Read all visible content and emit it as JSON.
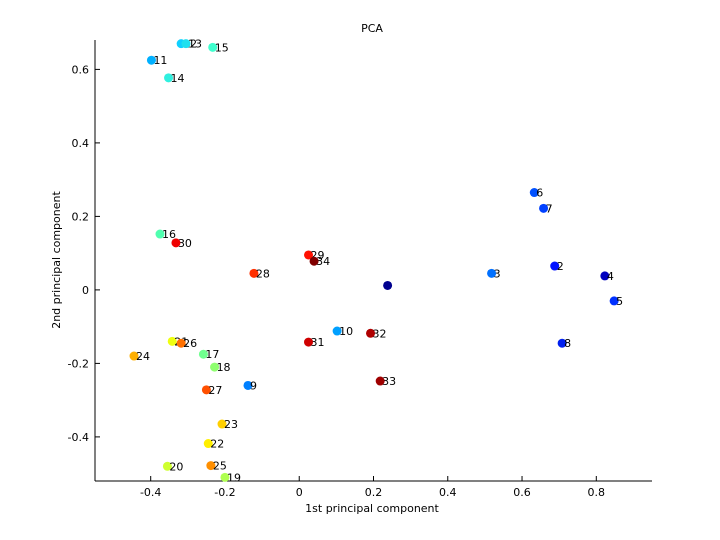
{
  "chart_data": {
    "type": "scatter",
    "title": "PCA",
    "xlabel": "1st principal component",
    "ylabel": "2nd principal component",
    "xlim": [
      -0.55,
      0.95
    ],
    "ylim": [
      -0.52,
      0.68
    ],
    "xticks": [
      -0.4,
      -0.2,
      0,
      0.2,
      0.4,
      0.6,
      0.8
    ],
    "xtick_labels": [
      "-0.4",
      "-0.2",
      "0",
      "0.2",
      "0.4",
      "0.6",
      "0.8"
    ],
    "yticks": [
      -0.4,
      -0.2,
      0,
      0.2,
      0.4,
      0.6
    ],
    "ytick_labels": [
      "-0.4",
      "-0.2",
      "0",
      "0.2",
      "0.4",
      "0.6"
    ],
    "grid": false,
    "points": [
      {
        "label": "",
        "x": 0.238,
        "y": 0.012,
        "color": "#00008f"
      },
      {
        "label": "2",
        "x": 0.688,
        "y": 0.065,
        "color": "#0010ff"
      },
      {
        "label": "3",
        "x": 0.518,
        "y": 0.045,
        "color": "#0070ff"
      },
      {
        "label": "4",
        "x": 0.823,
        "y": 0.038,
        "color": "#0000bf"
      },
      {
        "label": "5",
        "x": 0.848,
        "y": -0.03,
        "color": "#0030ff"
      },
      {
        "label": "6",
        "x": 0.633,
        "y": 0.265,
        "color": "#0050ff"
      },
      {
        "label": "7",
        "x": 0.658,
        "y": 0.222,
        "color": "#0040ff"
      },
      {
        "label": "8",
        "x": 0.708,
        "y": -0.145,
        "color": "#0020ef"
      },
      {
        "label": "9",
        "x": -0.138,
        "y": -0.26,
        "color": "#0080ff"
      },
      {
        "label": "10",
        "x": 0.102,
        "y": -0.112,
        "color": "#00a0ff"
      },
      {
        "label": "11",
        "x": -0.398,
        "y": 0.625,
        "color": "#00b0ff"
      },
      {
        "label": "12",
        "x": -0.318,
        "y": 0.67,
        "color": "#10d0ff"
      },
      {
        "label": "13",
        "x": -0.305,
        "y": 0.67,
        "color": "#20e0ef"
      },
      {
        "label": "14",
        "x": -0.352,
        "y": 0.577,
        "color": "#30f0df"
      },
      {
        "label": "15",
        "x": -0.233,
        "y": 0.66,
        "color": "#40ffcf"
      },
      {
        "label": "16",
        "x": -0.375,
        "y": 0.152,
        "color": "#50ffaf"
      },
      {
        "label": "17",
        "x": -0.258,
        "y": -0.175,
        "color": "#70ff8f"
      },
      {
        "label": "18",
        "x": -0.228,
        "y": -0.21,
        "color": "#8fff70"
      },
      {
        "label": "19",
        "x": -0.2,
        "y": -0.51,
        "color": "#afff50"
      },
      {
        "label": "20",
        "x": -0.355,
        "y": -0.48,
        "color": "#cfff30"
      },
      {
        "label": "21",
        "x": -0.342,
        "y": -0.14,
        "color": "#efff10"
      },
      {
        "label": "22",
        "x": -0.245,
        "y": -0.418,
        "color": "#ffef00"
      },
      {
        "label": "23",
        "x": -0.208,
        "y": -0.365,
        "color": "#ffcf00"
      },
      {
        "label": "24",
        "x": -0.445,
        "y": -0.18,
        "color": "#ffaf00"
      },
      {
        "label": "25",
        "x": -0.238,
        "y": -0.478,
        "color": "#ff8f00"
      },
      {
        "label": "26",
        "x": -0.318,
        "y": -0.145,
        "color": "#ff7000"
      },
      {
        "label": "27",
        "x": -0.25,
        "y": -0.272,
        "color": "#ff5000"
      },
      {
        "label": "28",
        "x": -0.122,
        "y": 0.045,
        "color": "#ff3000"
      },
      {
        "label": "29",
        "x": 0.025,
        "y": 0.095,
        "color": "#ff1000"
      },
      {
        "label": "30",
        "x": -0.332,
        "y": 0.128,
        "color": "#ef0000"
      },
      {
        "label": "31",
        "x": 0.025,
        "y": -0.142,
        "color": "#cf0000"
      },
      {
        "label": "32",
        "x": 0.192,
        "y": -0.118,
        "color": "#af0000"
      },
      {
        "label": "33",
        "x": 0.218,
        "y": -0.248,
        "color": "#9f0000"
      },
      {
        "label": "34",
        "x": 0.04,
        "y": 0.078,
        "color": "#800000"
      }
    ]
  }
}
